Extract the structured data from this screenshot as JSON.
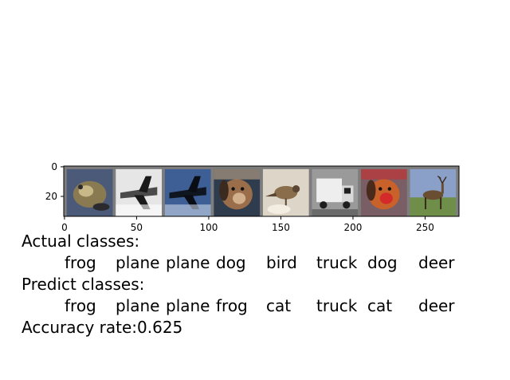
{
  "axes": {
    "x_ticks": [
      "0",
      "50",
      "100",
      "150",
      "200",
      "250"
    ],
    "y_ticks": [
      "0",
      "20"
    ]
  },
  "images": [
    {
      "icon": "frog-image",
      "palette": {
        "bg": "#4b5a78",
        "main": "#8a7a52",
        "accent": "#c8b888",
        "dark": "#2b2a2e"
      }
    },
    {
      "icon": "plane-image",
      "palette": {
        "bg": "#e6e6e6",
        "main": "#4a4a4a",
        "accent": "#ffffff",
        "dark": "#1a1a1a"
      }
    },
    {
      "icon": "plane-image",
      "palette": {
        "bg": "#3d5f95",
        "main": "#101620",
        "accent": "#c9d6ea",
        "dark": "#0a0d14"
      }
    },
    {
      "icon": "dog-image",
      "palette": {
        "bg": "#2e3c4e",
        "main": "#9a6e4a",
        "accent": "#d2b08e",
        "dark": "#3a2a20"
      }
    },
    {
      "icon": "bird-image",
      "palette": {
        "bg": "#ddd6c8",
        "main": "#8a6e4c",
        "accent": "#f4eee2",
        "dark": "#5a4632"
      }
    },
    {
      "icon": "truck-image",
      "palette": {
        "bg": "#9a9a9a",
        "main": "#eeeeee",
        "accent": "#d8d8d8",
        "dark": "#1e1e1e"
      }
    },
    {
      "icon": "dog-image",
      "palette": {
        "bg": "#7a5e66",
        "main": "#c8622a",
        "accent": "#d42a2a",
        "dark": "#4a2a1a"
      }
    },
    {
      "icon": "deer-image",
      "palette": {
        "bg": "#8aa0c8",
        "main": "#6a4e32",
        "accent": "#6e8e4a",
        "dark": "#3a2a1a"
      }
    }
  ],
  "text": {
    "actual_label": "Actual classes:",
    "predict_label": "Predict classes:",
    "accuracy": "Accuracy rate:0.625"
  },
  "actual_classes": [
    "frog",
    "plane",
    "plane",
    "dog",
    "bird",
    "truck",
    "dog",
    "deer"
  ],
  "predicted_classes": [
    "frog",
    "plane",
    "plane",
    "frog",
    "cat",
    "truck",
    "cat",
    "deer"
  ]
}
